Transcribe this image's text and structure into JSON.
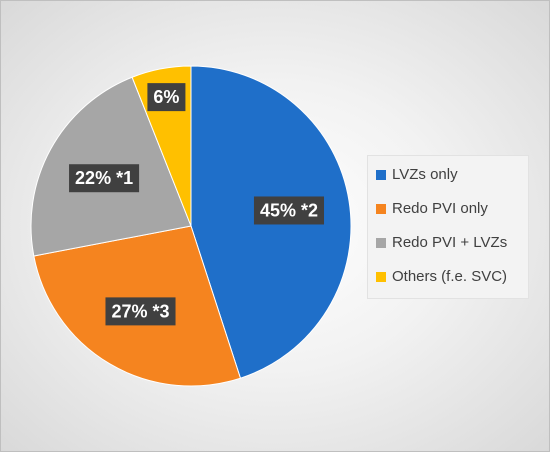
{
  "chart_data": {
    "type": "pie",
    "categories": [
      "LVZs only",
      "Redo PVI only",
      "Redo PVI + LVZs",
      "Others (f.e. SVC)"
    ],
    "values": [
      45,
      27,
      22,
      6
    ],
    "data_labels": [
      "45% *2",
      "27% *3",
      "22% *1",
      "6%"
    ],
    "colors": [
      "#1f6fc9",
      "#f5841f",
      "#a6a6a6",
      "#ffc000"
    ],
    "title": "",
    "legend_position": "right"
  }
}
